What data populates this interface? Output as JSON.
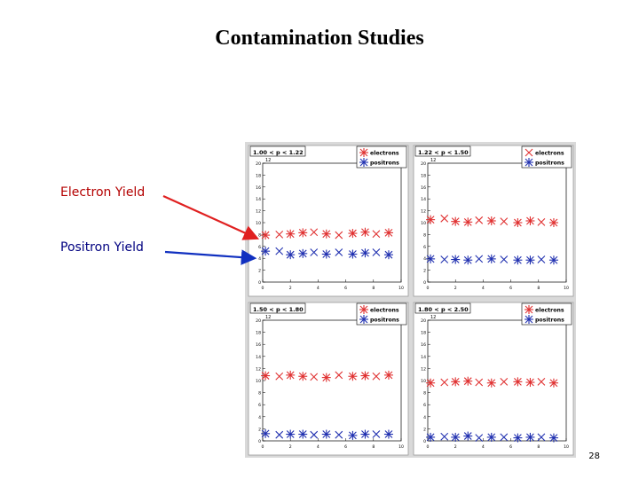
{
  "slide": {
    "title": "Contamination Studies",
    "electron_label": "Electron Yield",
    "positron_label": "Positron Yield",
    "page_number": "28"
  },
  "colors": {
    "electron": "#e03030",
    "positron": "#2030b0",
    "arrow_electron": "#e02020",
    "arrow_positron": "#1030c0",
    "panel_bg": "#ffffff",
    "figure_bg": "#d9d9d9"
  },
  "chart_data": [
    {
      "type": "scatter",
      "title": "1.00 < p < 1.22",
      "corner_label": "12",
      "x_ticks": [
        "0",
        "2",
        "4",
        "6",
        "8",
        "10"
      ],
      "y_ticks": [
        "0",
        "2",
        "4",
        "6",
        "8",
        "10",
        "12",
        "14",
        "16",
        "18",
        "20"
      ],
      "xlim": [
        0,
        10
      ],
      "ylim": [
        0,
        20
      ],
      "legend": [
        "electrons",
        "positrons"
      ],
      "series": [
        {
          "name": "electrons",
          "x": [
            0.2,
            1.2,
            2.0,
            2.9,
            3.7,
            4.6,
            5.5,
            6.5,
            7.4,
            8.2,
            9.1
          ],
          "y": [
            7.9,
            8.0,
            8.1,
            8.3,
            8.4,
            8.1,
            7.9,
            8.2,
            8.4,
            8.1,
            8.3
          ]
        },
        {
          "name": "positrons",
          "x": [
            0.2,
            1.2,
            2.0,
            2.9,
            3.7,
            4.6,
            5.5,
            6.5,
            7.4,
            8.2,
            9.1
          ],
          "y": [
            5.2,
            5.2,
            4.6,
            4.8,
            5.0,
            4.7,
            5.0,
            4.7,
            4.9,
            5.0,
            4.6
          ]
        }
      ]
    },
    {
      "type": "scatter",
      "title": "1.22 < p < 1.50",
      "corner_label": "12",
      "x_ticks": [
        "0",
        "2",
        "4",
        "6",
        "8",
        "10"
      ],
      "y_ticks": [
        "0",
        "2",
        "4",
        "6",
        "8",
        "10",
        "12",
        "14",
        "16",
        "18",
        "20"
      ],
      "xlim": [
        0,
        10
      ],
      "ylim": [
        0,
        20
      ],
      "legend": [
        "electrons",
        "positrons"
      ],
      "series": [
        {
          "name": "electrons",
          "x": [
            0.2,
            1.2,
            2.0,
            2.9,
            3.7,
            4.6,
            5.5,
            6.5,
            7.4,
            8.2,
            9.1
          ],
          "y": [
            10.5,
            10.7,
            10.2,
            10.1,
            10.4,
            10.3,
            10.2,
            10.0,
            10.3,
            10.1,
            10.0
          ]
        },
        {
          "name": "positrons",
          "x": [
            0.2,
            1.2,
            2.0,
            2.9,
            3.7,
            4.6,
            5.5,
            6.5,
            7.4,
            8.2,
            9.1
          ],
          "y": [
            3.9,
            3.8,
            3.8,
            3.7,
            3.9,
            3.9,
            3.8,
            3.7,
            3.7,
            3.8,
            3.7
          ]
        }
      ]
    },
    {
      "type": "scatter",
      "title": "1.50 < p < 1.80",
      "corner_label": "12",
      "x_ticks": [
        "0",
        "2",
        "4",
        "6",
        "8",
        "10"
      ],
      "y_ticks": [
        "0",
        "2",
        "4",
        "6",
        "8",
        "10",
        "12",
        "14",
        "16",
        "18",
        "20"
      ],
      "xlim": [
        0,
        10
      ],
      "ylim": [
        0,
        20
      ],
      "legend": [
        "electrons",
        "positrons"
      ],
      "series": [
        {
          "name": "electrons",
          "x": [
            0.2,
            1.2,
            2.0,
            2.9,
            3.7,
            4.6,
            5.5,
            6.5,
            7.4,
            8.2,
            9.1
          ],
          "y": [
            10.8,
            10.7,
            10.9,
            10.7,
            10.6,
            10.5,
            10.9,
            10.7,
            10.8,
            10.7,
            10.9
          ]
        },
        {
          "name": "positrons",
          "x": [
            0.2,
            1.2,
            2.0,
            2.9,
            3.7,
            4.6,
            5.5,
            6.5,
            7.4,
            8.2,
            9.1
          ],
          "y": [
            1.2,
            1.0,
            1.1,
            1.1,
            1.0,
            1.1,
            1.0,
            0.9,
            1.1,
            1.1,
            1.1
          ]
        }
      ]
    },
    {
      "type": "scatter",
      "title": "1.80 < p < 2.50",
      "corner_label": "12",
      "x_ticks": [
        "0",
        "2",
        "4",
        "6",
        "8",
        "10"
      ],
      "y_ticks": [
        "0",
        "2",
        "4",
        "6",
        "8",
        "10",
        "12",
        "14",
        "16",
        "18",
        "20"
      ],
      "xlim": [
        0,
        10
      ],
      "ylim": [
        0,
        20
      ],
      "legend": [
        "electrons",
        "positrons"
      ],
      "series": [
        {
          "name": "electrons",
          "x": [
            0.2,
            1.2,
            2.0,
            2.9,
            3.7,
            4.6,
            5.5,
            6.5,
            7.4,
            8.2,
            9.1
          ],
          "y": [
            9.6,
            9.7,
            9.8,
            9.9,
            9.7,
            9.6,
            9.8,
            9.8,
            9.7,
            9.8,
            9.6
          ]
        },
        {
          "name": "positrons",
          "x": [
            0.2,
            1.2,
            2.0,
            2.9,
            3.7,
            4.6,
            5.5,
            6.5,
            7.4,
            8.2,
            9.1
          ],
          "y": [
            0.6,
            0.7,
            0.6,
            0.8,
            0.5,
            0.6,
            0.6,
            0.5,
            0.6,
            0.6,
            0.5
          ]
        }
      ]
    }
  ]
}
